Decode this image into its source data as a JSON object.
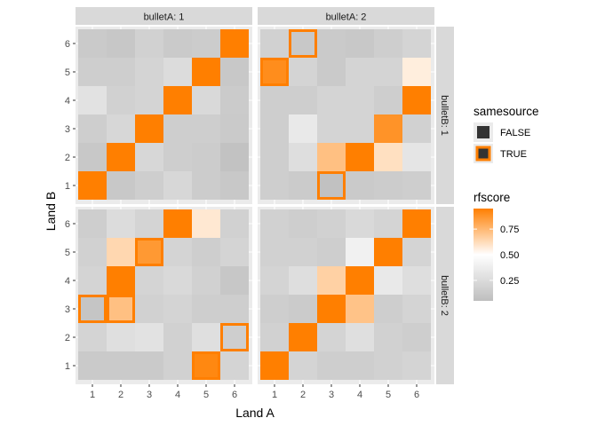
{
  "chart_data": {
    "type": "heatmap",
    "xlabel": "Land A",
    "ylabel": "Land B",
    "x_categories": [
      "1",
      "2",
      "3",
      "4",
      "5",
      "6"
    ],
    "y_categories": [
      "1",
      "2",
      "3",
      "4",
      "5",
      "6"
    ],
    "facet_col_labels": [
      "bulletA: 1",
      "bulletA: 2"
    ],
    "facet_row_labels": [
      "bulletB: 1",
      "bulletB: 2"
    ],
    "color_scale": {
      "name": "rfscore",
      "low_color": "#bebebe",
      "mid_color": "#ffffff",
      "high_color": "#ff7f00",
      "midpoint": 0.5,
      "range": [
        0.05,
        0.95
      ],
      "breaks": [
        0.25,
        0.5,
        0.75
      ],
      "break_labels": [
        "0.25",
        "0.50",
        "0.75"
      ]
    },
    "outline_legend": {
      "title": "samesource",
      "entries": [
        {
          "label": "FALSE",
          "outline": "none"
        },
        {
          "label": "TRUE",
          "outline": "#ff7f00"
        }
      ]
    },
    "panels": [
      {
        "bulletA": "1",
        "bulletB": "1",
        "rows": [
          [
            0.95,
            0.12,
            0.16,
            0.22,
            0.15,
            0.12
          ],
          [
            0.12,
            0.95,
            0.22,
            0.16,
            0.15,
            0.08
          ],
          [
            0.16,
            0.22,
            0.95,
            0.16,
            0.16,
            0.13
          ],
          [
            0.3,
            0.18,
            0.2,
            0.95,
            0.24,
            0.14
          ],
          [
            0.16,
            0.16,
            0.2,
            0.26,
            0.95,
            0.12
          ],
          [
            0.13,
            0.11,
            0.18,
            0.13,
            0.15,
            0.95
          ]
        ],
        "same_source": [
          [
            1,
            1
          ],
          [
            2,
            2
          ],
          [
            3,
            3
          ],
          [
            4,
            4
          ],
          [
            5,
            5
          ],
          [
            6,
            6
          ]
        ]
      },
      {
        "bulletA": "2",
        "bulletB": "1",
        "rows": [
          [
            0.16,
            0.14,
            0.07,
            0.13,
            0.15,
            0.16
          ],
          [
            0.16,
            0.27,
            0.72,
            0.95,
            0.61,
            0.32
          ],
          [
            0.16,
            0.35,
            0.2,
            0.2,
            0.88,
            0.18
          ],
          [
            0.16,
            0.16,
            0.2,
            0.2,
            0.16,
            0.95
          ],
          [
            0.9,
            0.2,
            0.13,
            0.2,
            0.2,
            0.56
          ],
          [
            0.18,
            0.12,
            0.13,
            0.12,
            0.16,
            0.2
          ]
        ],
        "same_source": [
          [
            3,
            1
          ],
          [
            1,
            5
          ],
          [
            2,
            6
          ]
        ]
      },
      {
        "bulletA": "1",
        "bulletB": "2",
        "rows": [
          [
            0.13,
            0.13,
            0.13,
            0.18,
            0.92,
            0.2
          ],
          [
            0.2,
            0.28,
            0.3,
            0.18,
            0.28,
            0.16
          ],
          [
            0.1,
            0.72,
            0.18,
            0.2,
            0.16,
            0.16
          ],
          [
            0.2,
            0.95,
            0.2,
            0.24,
            0.18,
            0.11
          ],
          [
            0.18,
            0.64,
            0.86,
            0.2,
            0.16,
            0.2
          ],
          [
            0.16,
            0.26,
            0.2,
            0.95,
            0.58,
            0.18
          ]
        ],
        "same_source": [
          [
            6,
            2
          ],
          [
            1,
            3
          ],
          [
            2,
            3
          ],
          [
            2,
            4
          ],
          [
            3,
            5
          ],
          [
            4,
            6
          ],
          [
            5,
            1
          ]
        ]
      },
      {
        "bulletA": "2",
        "bulletB": "2",
        "rows": [
          [
            0.95,
            0.2,
            0.16,
            0.16,
            0.18,
            0.2
          ],
          [
            0.18,
            0.95,
            0.2,
            0.28,
            0.18,
            0.16
          ],
          [
            0.16,
            0.14,
            0.95,
            0.71,
            0.16,
            0.2
          ],
          [
            0.2,
            0.27,
            0.66,
            0.95,
            0.35,
            0.27
          ],
          [
            0.18,
            0.18,
            0.16,
            0.4,
            0.95,
            0.2
          ],
          [
            0.18,
            0.16,
            0.18,
            0.24,
            0.2,
            0.95
          ]
        ],
        "same_source": [
          [
            1,
            1
          ],
          [
            2,
            2
          ],
          [
            3,
            3
          ],
          [
            4,
            4
          ],
          [
            5,
            5
          ],
          [
            6,
            6
          ]
        ]
      }
    ]
  }
}
